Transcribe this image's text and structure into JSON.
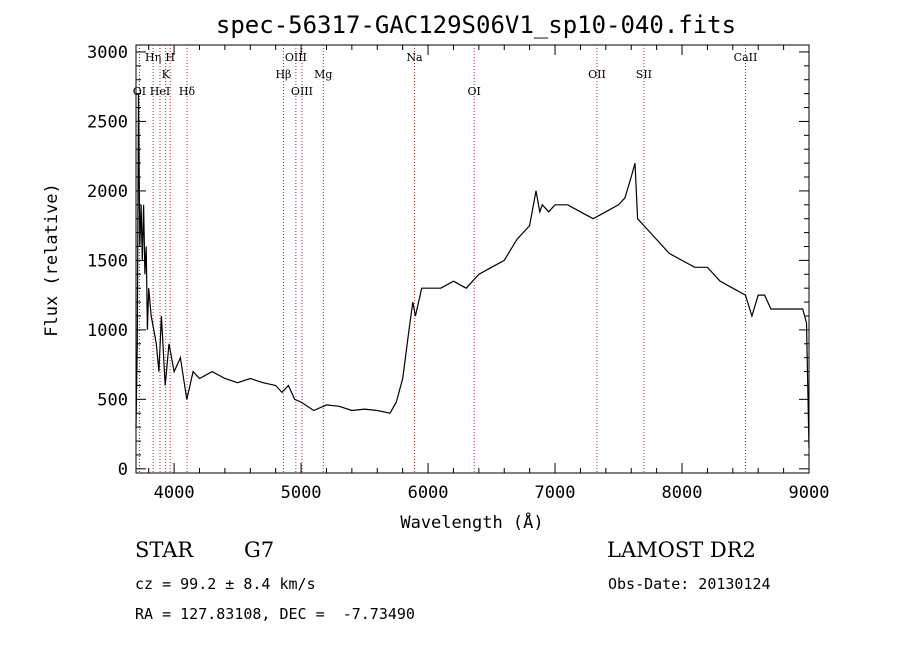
{
  "chart_data": {
    "type": "line",
    "title": "spec-56317-GAC129S06V1_sp10-040.fits",
    "xlabel": "Wavelength (Å)",
    "ylabel": "Flux (relative)",
    "xlim": [
      3700,
      9000
    ],
    "ylim": [
      -30,
      3050
    ],
    "xticks": [
      "4000",
      "5000",
      "6000",
      "7000",
      "8000",
      "9000"
    ],
    "yticks": [
      "0",
      "500",
      "1000",
      "1500",
      "2000",
      "2500",
      "3000"
    ],
    "series": [
      {
        "x": [
          3700,
          3710,
          3720,
          3730,
          3740,
          3750,
          3760,
          3770,
          3780,
          3790,
          3800,
          3820,
          3840,
          3860,
          3880,
          3900,
          3930,
          3960,
          4000,
          4050,
          4100,
          4150,
          4200,
          4300,
          4400,
          4500,
          4600,
          4700,
          4800,
          4850,
          4900,
          4950,
          5000,
          5100,
          5200,
          5300,
          5400,
          5500,
          5600,
          5700,
          5750,
          5800,
          5850,
          5880,
          5900,
          5950,
          6000,
          6100,
          6200,
          6300,
          6400,
          6500,
          6600,
          6700,
          6800,
          6850,
          6880,
          6900,
          6950,
          7000,
          7100,
          7200,
          7300,
          7400,
          7500,
          7550,
          7600,
          7630,
          7650,
          7700,
          7800,
          7900,
          8000,
          8100,
          8200,
          8300,
          8400,
          8500,
          8550,
          8600,
          8650,
          8700,
          8800,
          8900,
          8950,
          8980,
          9000
        ],
        "y": [
          300,
          900,
          2700,
          1600,
          1900,
          1500,
          1900,
          1400,
          1600,
          1000,
          1300,
          1100,
          1000,
          900,
          700,
          1100,
          600,
          900,
          700,
          800,
          500,
          700,
          650,
          700,
          650,
          620,
          650,
          620,
          600,
          550,
          600,
          500,
          480,
          420,
          460,
          450,
          420,
          430,
          420,
          400,
          480,
          650,
          1000,
          1200,
          1100,
          1300,
          1300,
          1300,
          1350,
          1300,
          1400,
          1450,
          1500,
          1650,
          1750,
          2000,
          1850,
          1900,
          1850,
          1900,
          1900,
          1850,
          1800,
          1850,
          1900,
          1950,
          2100,
          2200,
          1800,
          1750,
          1650,
          1550,
          1500,
          1450,
          1450,
          1350,
          1300,
          1250,
          1100,
          1250,
          1250,
          1150,
          1150,
          1150,
          1150,
          1050,
          150
        ]
      }
    ],
    "annotations": [
      {
        "label": "OI",
        "x": 3727,
        "row": 3
      },
      {
        "label": "Hη",
        "x": 3835,
        "row": 1
      },
      {
        "label": "H",
        "x": 3969,
        "row": 1
      },
      {
        "label": "K",
        "x": 3934,
        "row": 2
      },
      {
        "label": "HeI",
        "x": 3889,
        "row": 3
      },
      {
        "label": "Hδ",
        "x": 4102,
        "row": 3
      },
      {
        "label": "OIII",
        "x": 4959,
        "row": 1
      },
      {
        "label": "Hβ",
        "x": 4861,
        "row": 2
      },
      {
        "label": "OIII",
        "x": 5007,
        "row": 3
      },
      {
        "label": "Mg",
        "x": 5175,
        "row": 2
      },
      {
        "label": "Na",
        "x": 5893,
        "row": 1
      },
      {
        "label": "OI",
        "x": 6363,
        "row": 3
      },
      {
        "label": "OII",
        "x": 7330,
        "row": 2
      },
      {
        "label": "SII",
        "x": 7700,
        "row": 2
      },
      {
        "label": "CaII",
        "x": 8500,
        "row": 1
      }
    ],
    "line_markers_x": [
      3727,
      3835,
      3889,
      3934,
      3969,
      4102,
      4861,
      4959,
      5007,
      5175,
      5893,
      6363,
      7330,
      7700,
      8500
    ]
  },
  "info": {
    "object_class": "STAR",
    "subclass": "G7",
    "survey": "LAMOST DR2",
    "cz": "cz = 99.2 ± 8.4 km/s",
    "obs_date": "Obs-Date: 20130124",
    "radec": "RA = 127.83108, DEC =  -7.73490"
  }
}
